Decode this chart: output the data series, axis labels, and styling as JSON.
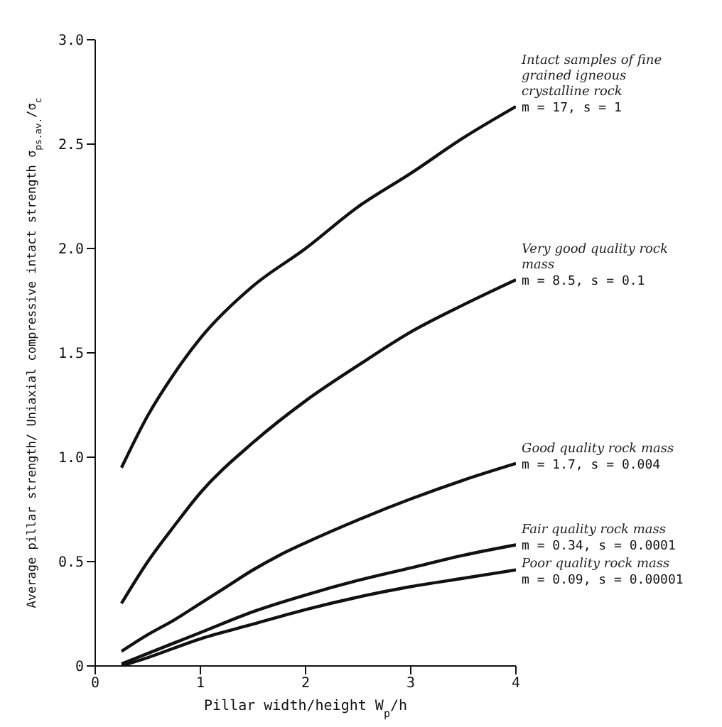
{
  "chart_data": {
    "type": "line",
    "xlabel": "Pillar width/height  W$_{p}$/h",
    "ylabel": "Average pillar strength/ Uniaxial compressive intact strength  σ$_{ps.av.}$/σ$_{c}$",
    "xlim": [
      0,
      4
    ],
    "xticks": [
      0,
      1,
      2,
      3,
      4
    ],
    "ylim": [
      0,
      3
    ],
    "yticks": [
      0,
      {
        "value": 0.5,
        "label": "0.5"
      },
      {
        "value": 1,
        "label": "1.0"
      },
      {
        "value": 1.5,
        "label": "1.5"
      },
      {
        "value": 2,
        "label": "2.0"
      },
      {
        "value": 2.5,
        "label": "2.5"
      },
      {
        "value": 3,
        "label": "3.0"
      }
    ],
    "grid": false,
    "marker": "none",
    "line_style": "solid",
    "series": [
      {
        "name": "Intact samples of fine grained igneous crystalline rock",
        "color": "#111111",
        "x": [
          0.25,
          0.5,
          0.75,
          1,
          1.5,
          2,
          2.5,
          3,
          3.5,
          4
        ],
        "values": [
          0.95,
          1.2,
          1.4,
          1.57,
          1.82,
          2.0,
          2.2,
          2.36,
          2.53,
          2.68
        ]
      },
      {
        "name": "Very good quality rock mass",
        "color": "#111111",
        "x": [
          0.25,
          0.5,
          0.75,
          1,
          1.5,
          2,
          2.5,
          3,
          3.5,
          4
        ],
        "values": [
          0.3,
          0.5,
          0.67,
          0.83,
          1.07,
          1.27,
          1.44,
          1.6,
          1.73,
          1.85
        ]
      },
      {
        "name": "Good quality rock mass",
        "color": "#111111",
        "x": [
          0.25,
          0.5,
          0.75,
          1,
          1.25,
          1.5,
          1.75,
          2,
          2.5,
          3,
          3.5,
          4
        ],
        "values": [
          0.07,
          0.15,
          0.22,
          0.3,
          0.38,
          0.46,
          0.53,
          0.59,
          0.7,
          0.8,
          0.89,
          0.97
        ]
      },
      {
        "name": "Fair quality rock mass",
        "color": "#111111",
        "x": [
          0.25,
          0.5,
          1,
          1.5,
          2,
          2.5,
          3,
          3.5,
          4
        ],
        "values": [
          0.01,
          0.06,
          0.16,
          0.26,
          0.34,
          0.41,
          0.47,
          0.53,
          0.58
        ]
      },
      {
        "name": "Poor quality rock mass",
        "color": "#111111",
        "x": [
          0.25,
          0.5,
          1,
          1.5,
          2,
          2.5,
          3,
          3.5,
          4
        ],
        "values": [
          0,
          0.04,
          0.13,
          0.2,
          0.27,
          0.33,
          0.38,
          0.42,
          0.46
        ]
      }
    ],
    "annotations": [
      "m = 17, s = 1",
      "m = 8.5, s = 0.1",
      "m = 1.7, s = 0.004",
      "m = 0.34, s = 0.0001",
      "m = 0.09, s = 0.00001"
    ]
  }
}
